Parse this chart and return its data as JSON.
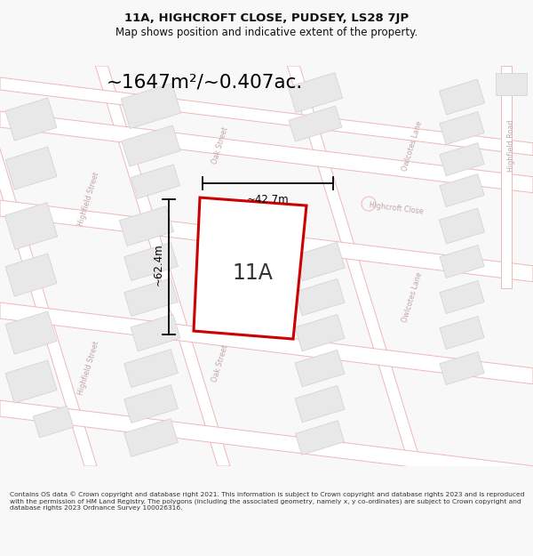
{
  "title_line1": "11A, HIGHCROFT CLOSE, PUDSEY, LS28 7JP",
  "title_line2": "Map shows position and indicative extent of the property.",
  "area_text": "~1647m²/~0.407ac.",
  "label_11A": "11A",
  "dim_vertical": "~62.4m",
  "dim_horizontal": "~42.7m",
  "footer_text": "Contains OS data © Crown copyright and database right 2021. This information is subject to Crown copyright and database rights 2023 and is reproduced with the permission of HM Land Registry. The polygons (including the associated geometry, namely x, y co-ordinates) are subject to Crown copyright and database rights 2023 Ordnance Survey 100026316.",
  "bg_color": "#f8f8f8",
  "map_bg": "#f8f8f8",
  "plot_fill": "#ffffff",
  "plot_edge": "#cc0000",
  "building_fill": "#e8e8e8",
  "building_edge": "#d0d0d0",
  "road_line_color": "#f0b8b8",
  "street_label_color": "#c0a0a0",
  "title_color": "#111111",
  "footer_color": "#333333"
}
